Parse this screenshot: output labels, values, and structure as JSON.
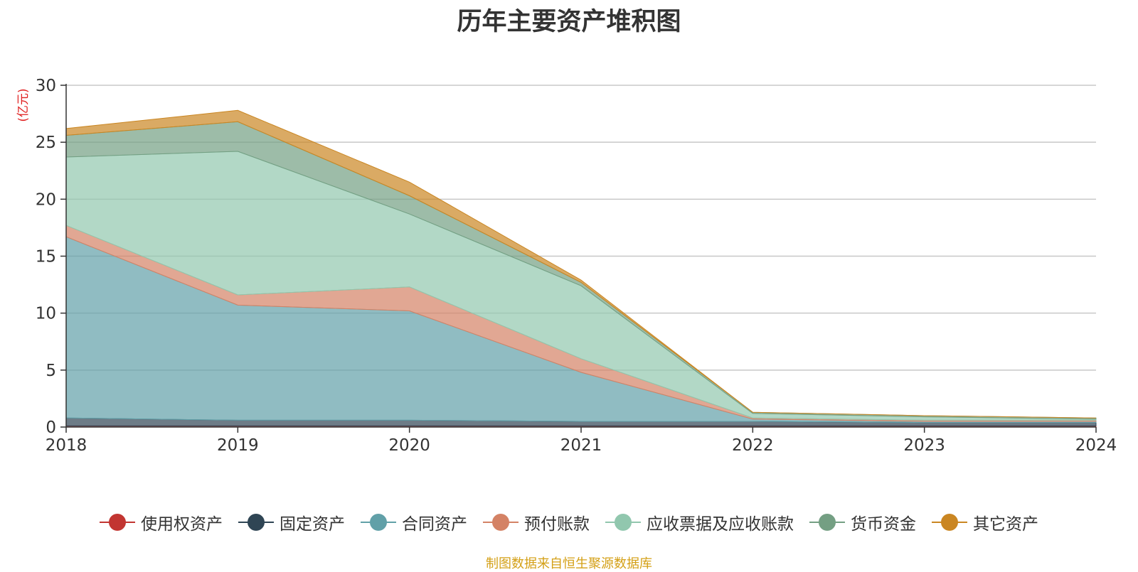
{
  "chart_data": {
    "type": "area",
    "title": "历年主要资产堆积图",
    "unit_label": "(亿元)",
    "x": [
      "2018",
      "2019",
      "2020",
      "2021",
      "2022",
      "2023",
      "2024"
    ],
    "ylim": [
      0,
      30
    ],
    "yticks": [
      "0",
      "5",
      "10",
      "15",
      "20",
      "25",
      "30"
    ],
    "stacked": true,
    "grid": true,
    "legend_position": "bottom",
    "series": [
      {
        "name": "使用权资产",
        "color": "#c23531",
        "values": [
          0.1,
          0.1,
          0.1,
          0.1,
          0.1,
          0.1,
          0.1
        ]
      },
      {
        "name": "固定资产",
        "color": "#2f4554",
        "values": [
          0.7,
          0.5,
          0.5,
          0.4,
          0.4,
          0.3,
          0.3
        ]
      },
      {
        "name": "合同资产",
        "color": "#61a0a8",
        "values": [
          15.9,
          10.1,
          9.6,
          4.3,
          0.2,
          0.1,
          0.1
        ]
      },
      {
        "name": "预付账款",
        "color": "#d48265",
        "values": [
          1.0,
          0.9,
          2.1,
          1.2,
          0.1,
          0.1,
          0.1
        ]
      },
      {
        "name": "应收票据及应收账款",
        "color": "#91c7ae",
        "values": [
          6.0,
          12.6,
          6.4,
          6.4,
          0.4,
          0.3,
          0.1
        ]
      },
      {
        "name": "货币资金",
        "color": "#749f83",
        "values": [
          1.9,
          2.6,
          1.6,
          0.3,
          0.1,
          0.1,
          0.1
        ]
      },
      {
        "name": "其它资产",
        "color": "#ca8622",
        "values": [
          0.6,
          1.0,
          1.2,
          0.2,
          0.0,
          0.0,
          0.0
        ]
      }
    ]
  },
  "source_note": "制图数据来自恒生聚源数据库"
}
